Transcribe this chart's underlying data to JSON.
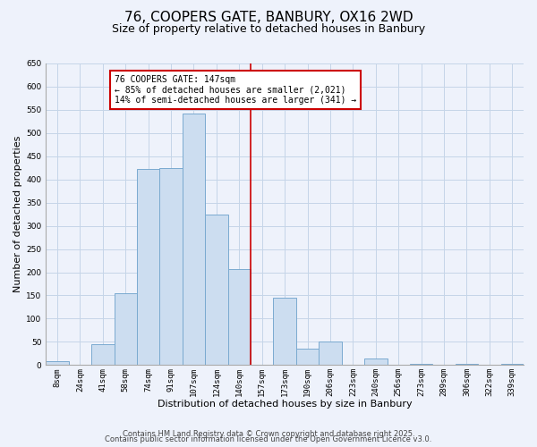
{
  "title": "76, COOPERS GATE, BANBURY, OX16 2WD",
  "subtitle": "Size of property relative to detached houses in Banbury",
  "xlabel": "Distribution of detached houses by size in Banbury",
  "ylabel": "Number of detached properties",
  "bin_labels": [
    "8sqm",
    "24sqm",
    "41sqm",
    "58sqm",
    "74sqm",
    "91sqm",
    "107sqm",
    "124sqm",
    "140sqm",
    "157sqm",
    "173sqm",
    "190sqm",
    "206sqm",
    "223sqm",
    "240sqm",
    "256sqm",
    "273sqm",
    "289sqm",
    "306sqm",
    "322sqm",
    "339sqm"
  ],
  "bar_values": [
    8,
    0,
    44,
    155,
    422,
    425,
    543,
    325,
    207,
    0,
    145,
    35,
    50,
    0,
    14,
    0,
    3,
    0,
    2,
    0,
    2
  ],
  "bar_color": "#ccddf0",
  "bar_edge_color": "#7aaad0",
  "grid_color": "#c5d5e8",
  "background_color": "#eef2fb",
  "vline_color": "#cc0000",
  "annotation_text": "76 COOPERS GATE: 147sqm\n← 85% of detached houses are smaller (2,021)\n14% of semi-detached houses are larger (341) →",
  "annotation_box_color": "#cc0000",
  "ylim": [
    0,
    650
  ],
  "yticks": [
    0,
    50,
    100,
    150,
    200,
    250,
    300,
    350,
    400,
    450,
    500,
    550,
    600,
    650
  ],
  "footer_line1": "Contains HM Land Registry data © Crown copyright and database right 2025.",
  "footer_line2": "Contains public sector information licensed under the Open Government Licence v3.0.",
  "title_fontsize": 11,
  "subtitle_fontsize": 9,
  "axis_label_fontsize": 8,
  "tick_fontsize": 6.5,
  "footer_fontsize": 6
}
